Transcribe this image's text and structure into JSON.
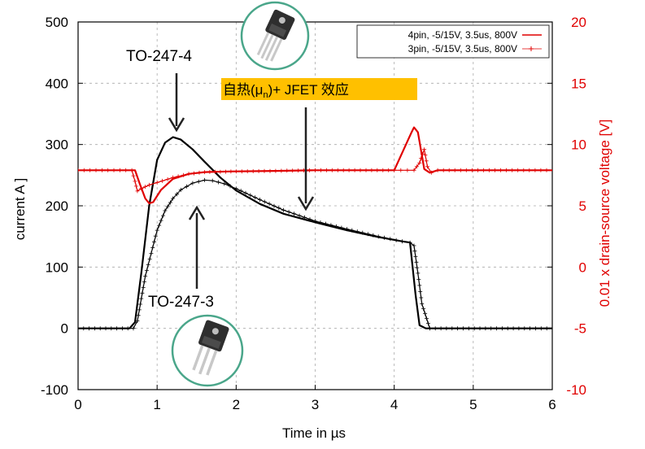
{
  "chart_data": {
    "type": "line",
    "xlabel": "Time in µs",
    "ylabel_left": "current A ]",
    "ylabel_right": "0.01 x drain-source voltage [V]",
    "x_ticks": [
      "0",
      "1",
      "2",
      "3",
      "4",
      "5",
      "6"
    ],
    "y_left_ticks": [
      "500",
      "400",
      "300",
      "200",
      "100",
      "0",
      "-100"
    ],
    "y_right_ticks": [
      "20",
      "15",
      "10",
      "5",
      "0",
      "-5",
      "-10"
    ],
    "xlim": [
      0,
      6
    ],
    "ylim_left": [
      -100,
      500
    ],
    "ylim_right": [
      -10,
      20
    ],
    "grid": "dashed",
    "legend_position": "top-right",
    "legend": [
      {
        "label": "4pin, -5/15V, 3.5us, 800V",
        "color": "#e00000",
        "marker": "line"
      },
      {
        "label": "3pin, -5/15V, 3.5us, 800V",
        "color": "#e00000",
        "marker": "plus"
      }
    ],
    "series": [
      {
        "name": "4pin, -5/15V, 3.5us, 800V",
        "quantity": "current",
        "axis": "left",
        "color": "#000000",
        "marker": "line",
        "x": [
          0,
          0.65,
          0.72,
          0.8,
          0.9,
          1.0,
          1.1,
          1.2,
          1.3,
          1.45,
          1.6,
          1.8,
          2.0,
          2.3,
          2.6,
          3.0,
          3.4,
          3.8,
          4.1,
          4.2,
          4.27,
          4.32,
          4.4,
          6.0
        ],
        "y": [
          0,
          0,
          10,
          90,
          200,
          275,
          303,
          312,
          308,
          292,
          272,
          246,
          225,
          203,
          187,
          173,
          160,
          149,
          142,
          140,
          55,
          5,
          0,
          0
        ]
      },
      {
        "name": "3pin, -5/15V, 3.5us, 800V",
        "quantity": "current",
        "axis": "left",
        "color": "#000000",
        "marker": "plus",
        "x": [
          0,
          0.7,
          0.75,
          0.85,
          1.0,
          1.1,
          1.2,
          1.3,
          1.45,
          1.6,
          1.7,
          1.85,
          2.0,
          2.3,
          2.6,
          3.0,
          3.4,
          3.8,
          4.1,
          4.2,
          4.25,
          4.3,
          4.35,
          4.45,
          6.0
        ],
        "y": [
          0,
          0,
          12,
          85,
          160,
          192,
          212,
          226,
          237,
          242,
          241,
          236,
          228,
          210,
          193,
          175,
          162,
          150,
          142,
          140,
          135,
          90,
          40,
          0,
          0
        ]
      },
      {
        "name": "4pin, -5/15V, 3.5us, 800V",
        "quantity": "0.01 x drain-source voltage",
        "axis": "right",
        "color": "#e00000",
        "marker": "line",
        "x": [
          0,
          0.72,
          0.78,
          0.85,
          0.9,
          0.95,
          1.05,
          1.2,
          1.4,
          1.6,
          1.9,
          2.5,
          3.0,
          4.0,
          4.22,
          4.25,
          4.3,
          4.38,
          4.45,
          4.55,
          6.0
        ],
        "y": [
          7.9,
          7.9,
          6.8,
          5.6,
          5.2,
          5.3,
          6.3,
          7.2,
          7.6,
          7.75,
          7.8,
          7.85,
          7.9,
          7.9,
          11.0,
          11.4,
          11.0,
          8.0,
          7.7,
          7.9,
          7.9
        ]
      },
      {
        "name": "3pin, -5/15V, 3.5us, 800V",
        "quantity": "0.01 x drain-source voltage",
        "axis": "right",
        "color": "#e00000",
        "marker": "plus",
        "x": [
          0,
          0.68,
          0.72,
          0.75,
          0.8,
          0.9,
          1.0,
          1.2,
          1.4,
          1.6,
          2.0,
          2.5,
          3.0,
          4.0,
          4.25,
          4.32,
          4.38,
          4.42,
          4.47,
          4.55,
          6.0
        ],
        "y": [
          7.9,
          7.9,
          7.0,
          6.2,
          6.4,
          6.7,
          6.9,
          7.3,
          7.6,
          7.75,
          7.8,
          7.85,
          7.9,
          7.9,
          7.9,
          8.5,
          9.6,
          8.2,
          7.7,
          7.9,
          7.9
        ]
      }
    ],
    "annotations": [
      {
        "text": "TO-247-4"
      },
      {
        "text": "TO-247-3"
      },
      {
        "text_main": "自热(μ",
        "text_sub": "n",
        "text_tail": ")+ JFET 效应"
      }
    ]
  }
}
